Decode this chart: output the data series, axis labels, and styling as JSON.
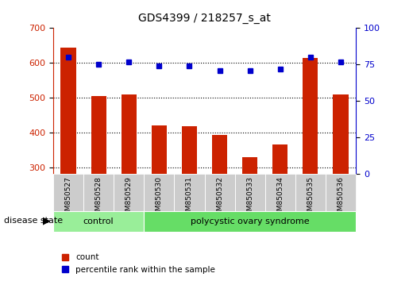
{
  "title": "GDS4399 / 218257_s_at",
  "samples": [
    "GSM850527",
    "GSM850528",
    "GSM850529",
    "GSM850530",
    "GSM850531",
    "GSM850532",
    "GSM850533",
    "GSM850534",
    "GSM850535",
    "GSM850536"
  ],
  "counts": [
    645,
    505,
    510,
    420,
    418,
    393,
    328,
    366,
    615,
    510
  ],
  "percentiles": [
    80,
    75,
    77,
    74,
    74,
    71,
    71,
    72,
    80,
    77
  ],
  "ylim_left": [
    280,
    700
  ],
  "ylim_right": [
    0,
    100
  ],
  "yticks_left": [
    300,
    400,
    500,
    600,
    700
  ],
  "yticks_right": [
    0,
    25,
    50,
    75,
    100
  ],
  "bar_color": "#cc2200",
  "dot_color": "#0000cc",
  "bar_bottom": 280,
  "groups": [
    {
      "label": "control",
      "start": 0,
      "end": 3,
      "color": "#99ee99"
    },
    {
      "label": "polycystic ovary syndrome",
      "start": 3,
      "end": 10,
      "color": "#66dd66"
    }
  ],
  "disease_state_label": "disease state",
  "legend_count_label": "count",
  "legend_percentile_label": "percentile rank within the sample",
  "dotted_line_color": "#000000",
  "tick_label_color_left": "#cc2200",
  "tick_label_color_right": "#0000cc",
  "background_color": "#ffffff",
  "xlabel_area_color": "#cccccc"
}
